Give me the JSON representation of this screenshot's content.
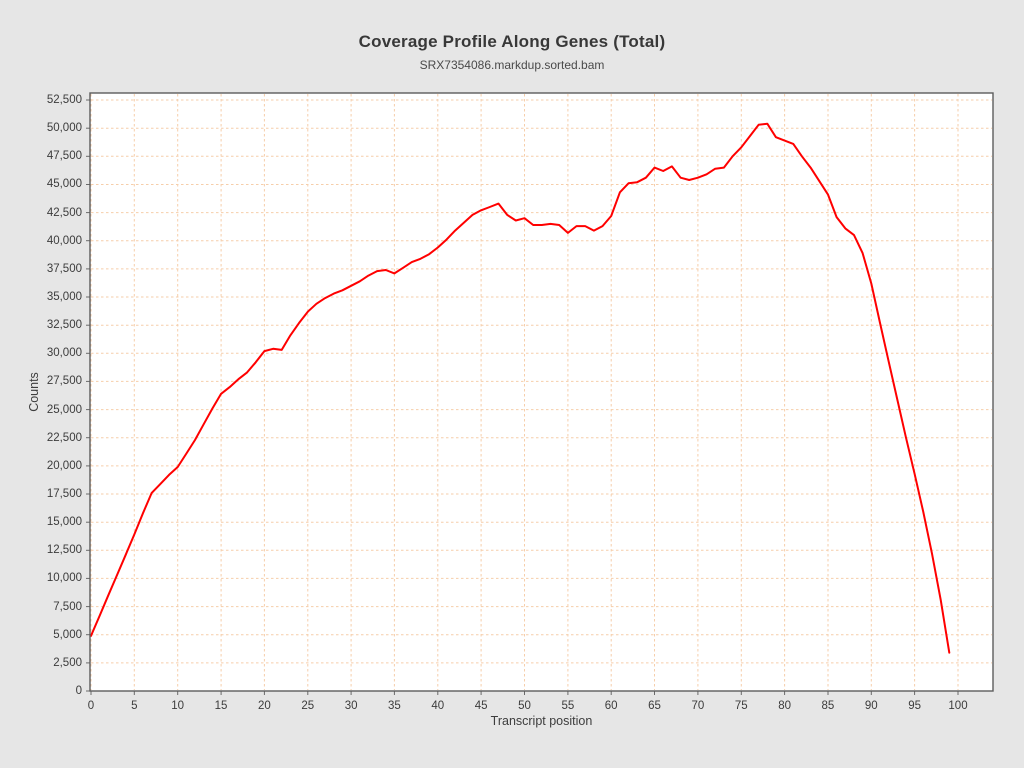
{
  "page": {
    "background_color": "#e6e6e6"
  },
  "chart_data": {
    "type": "line",
    "title": "Coverage Profile Along Genes (Total)",
    "subtitle": "SRX7354086.markdup.sorted.bam",
    "xlabel": "Transcript position",
    "ylabel": "Counts",
    "grid": true,
    "grid_color": "#f6ceaa",
    "plot_background": "#ffffff",
    "frame_color": "#5c5c5c",
    "legend_position": "none",
    "xlim": [
      -0.1,
      104
    ],
    "ylim": [
      0,
      53125
    ],
    "x_ticks": [
      0,
      5,
      10,
      15,
      20,
      25,
      30,
      35,
      40,
      45,
      50,
      55,
      60,
      65,
      70,
      75,
      80,
      85,
      90,
      95,
      100
    ],
    "x_tick_labels": [
      "0",
      "5",
      "10",
      "15",
      "20",
      "25",
      "30",
      "35",
      "40",
      "45",
      "50",
      "55",
      "60",
      "65",
      "70",
      "75",
      "80",
      "85",
      "90",
      "95",
      "100"
    ],
    "y_ticks": [
      0,
      2500,
      5000,
      7500,
      10000,
      12500,
      15000,
      17500,
      20000,
      22500,
      25000,
      27500,
      30000,
      32500,
      35000,
      37500,
      40000,
      42500,
      45000,
      47500,
      50000,
      52500
    ],
    "y_tick_labels": [
      "0",
      "2,500",
      "5,000",
      "7,500",
      "10,000",
      "12,500",
      "15,000",
      "17,500",
      "20,000",
      "22,500",
      "25,000",
      "27,500",
      "30,000",
      "32,500",
      "35,000",
      "37,500",
      "40,000",
      "42,500",
      "45,000",
      "47,500",
      "50,000",
      "52,500"
    ],
    "series": [
      {
        "name": "SRX7354086.markdup.sorted.bam",
        "color": "#ff0000",
        "x": [
          0,
          1,
          2,
          3,
          4,
          5,
          6,
          7,
          8,
          9,
          10,
          11,
          12,
          13,
          14,
          15,
          16,
          17,
          18,
          19,
          20,
          21,
          22,
          23,
          24,
          25,
          26,
          27,
          28,
          29,
          30,
          31,
          32,
          33,
          34,
          35,
          36,
          37,
          38,
          39,
          40,
          41,
          42,
          43,
          44,
          45,
          46,
          47,
          48,
          49,
          50,
          51,
          52,
          53,
          54,
          55,
          56,
          57,
          58,
          59,
          60,
          61,
          62,
          63,
          64,
          65,
          66,
          67,
          68,
          69,
          70,
          71,
          72,
          73,
          74,
          75,
          76,
          77,
          78,
          79,
          80,
          81,
          82,
          83,
          84,
          85,
          86,
          87,
          88,
          89,
          90,
          91,
          92,
          93,
          94,
          95,
          96,
          97,
          98,
          99
        ],
        "values": [
          4900,
          6700,
          8500,
          10300,
          12100,
          13900,
          15800,
          17600,
          18400,
          19200,
          19900,
          21100,
          22300,
          23700,
          25100,
          26400,
          27000,
          27700,
          28300,
          29200,
          30200,
          30400,
          30300,
          31600,
          32700,
          33700,
          34400,
          34900,
          35300,
          35600,
          36000,
          36400,
          36900,
          37300,
          37400,
          37100,
          37600,
          38100,
          38400,
          38800,
          39400,
          40100,
          40900,
          41600,
          42300,
          42700,
          43000,
          43300,
          42300,
          41800,
          42000,
          41400,
          41400,
          41500,
          41400,
          40700,
          41300,
          41300,
          40900,
          41300,
          42200,
          44300,
          45100,
          45200,
          45600,
          46500,
          46200,
          46600,
          45600,
          45400,
          45600,
          45900,
          46400,
          46500,
          47500,
          48300,
          49300,
          50300,
          50400,
          49200,
          48900,
          48600,
          47500,
          46500,
          45300,
          44100,
          42100,
          41100,
          40500,
          38900,
          36200,
          32700,
          29300,
          25900,
          22500,
          19300,
          15900,
          12200,
          8100,
          3400
        ]
      }
    ]
  }
}
